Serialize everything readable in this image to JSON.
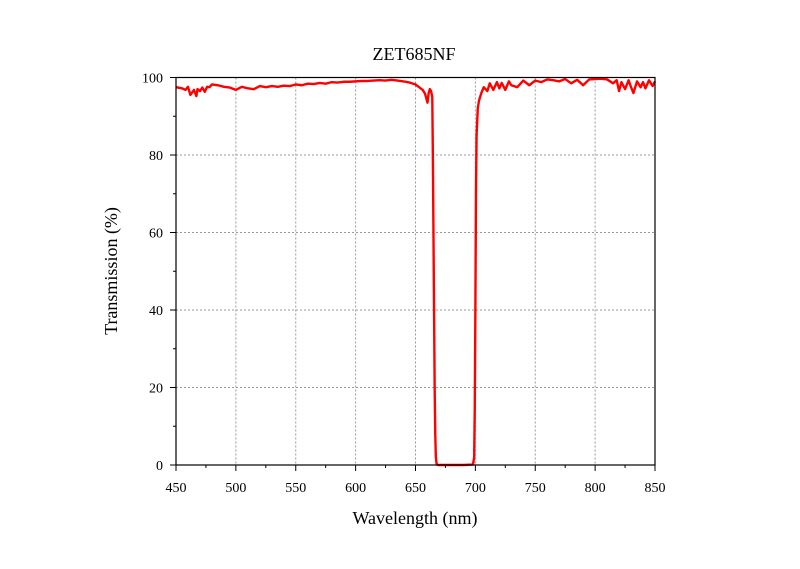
{
  "chart_data": {
    "type": "line",
    "title": "ZET685NF",
    "xlabel": "Wavelength (nm)",
    "ylabel": "Transmission (%)",
    "xlim": [
      450,
      850
    ],
    "ylim": [
      0,
      100
    ],
    "x_ticks": [
      "450",
      "500",
      "550",
      "600",
      "650",
      "700",
      "750",
      "800",
      "850"
    ],
    "y_ticks": [
      "0",
      "20",
      "40",
      "60",
      "80",
      "100"
    ],
    "grid": true,
    "line_color": "#ff0000",
    "series": [
      {
        "x": [
          450,
          455,
          458,
          460,
          462,
          465,
          467,
          468,
          470,
          472,
          474,
          476,
          478,
          480,
          485,
          490,
          495,
          500,
          505,
          510,
          515,
          520,
          525,
          530,
          535,
          540,
          545,
          550,
          555,
          560,
          565,
          570,
          575,
          580,
          585,
          590,
          595,
          600,
          605,
          610,
          615,
          620,
          625,
          630,
          635,
          640,
          645,
          650,
          653,
          656,
          658,
          660,
          661,
          662,
          663,
          664,
          664.5,
          665,
          665.5,
          666,
          666.5,
          667,
          667.5,
          668,
          669,
          670,
          680,
          690,
          698,
          699,
          699.5,
          700,
          700.5,
          701,
          702,
          703,
          705,
          707,
          710,
          712,
          715,
          718,
          720,
          722,
          725,
          728,
          730,
          735,
          740,
          745,
          750,
          755,
          760,
          765,
          770,
          775,
          780,
          785,
          790,
          795,
          800,
          805,
          810,
          815,
          818,
          820,
          822,
          825,
          828,
          830,
          832,
          835,
          838,
          840,
          842,
          845,
          848,
          850
        ],
        "y": [
          97.5,
          97.2,
          96.8,
          97.6,
          95.5,
          96.8,
          95.2,
          97.0,
          96.5,
          97.4,
          96.3,
          97.6,
          97.5,
          98.2,
          98.0,
          97.6,
          97.4,
          96.8,
          97.6,
          97.2,
          97.0,
          97.8,
          97.5,
          97.8,
          97.6,
          97.9,
          97.8,
          98.2,
          98.0,
          98.4,
          98.3,
          98.6,
          98.4,
          98.8,
          98.7,
          98.9,
          98.9,
          99.0,
          99.1,
          99.1,
          99.2,
          99.3,
          99.2,
          99.4,
          99.2,
          99.0,
          98.7,
          98.2,
          97.5,
          96.8,
          95.8,
          93.5,
          96.0,
          97.0,
          96.5,
          95.0,
          80.0,
          60.0,
          40.0,
          20.0,
          8.0,
          2.0,
          0.5,
          0.1,
          0.0,
          0.0,
          0.0,
          0.0,
          0.1,
          2.0,
          15.0,
          40.0,
          70.0,
          85.0,
          92.0,
          94.0,
          96.0,
          97.5,
          96.5,
          98.5,
          96.8,
          98.8,
          97.2,
          98.6,
          96.8,
          99.0,
          98.0,
          97.5,
          99.2,
          98.0,
          99.2,
          98.8,
          99.5,
          99.3,
          99.0,
          99.6,
          98.5,
          99.4,
          98.0,
          99.5,
          99.6,
          99.7,
          99.5,
          98.5,
          99.3,
          96.5,
          98.8,
          97.0,
          99.3,
          97.5,
          96.0,
          99.0,
          97.5,
          98.8,
          97.2,
          99.3,
          97.8,
          99.0
        ]
      }
    ]
  }
}
